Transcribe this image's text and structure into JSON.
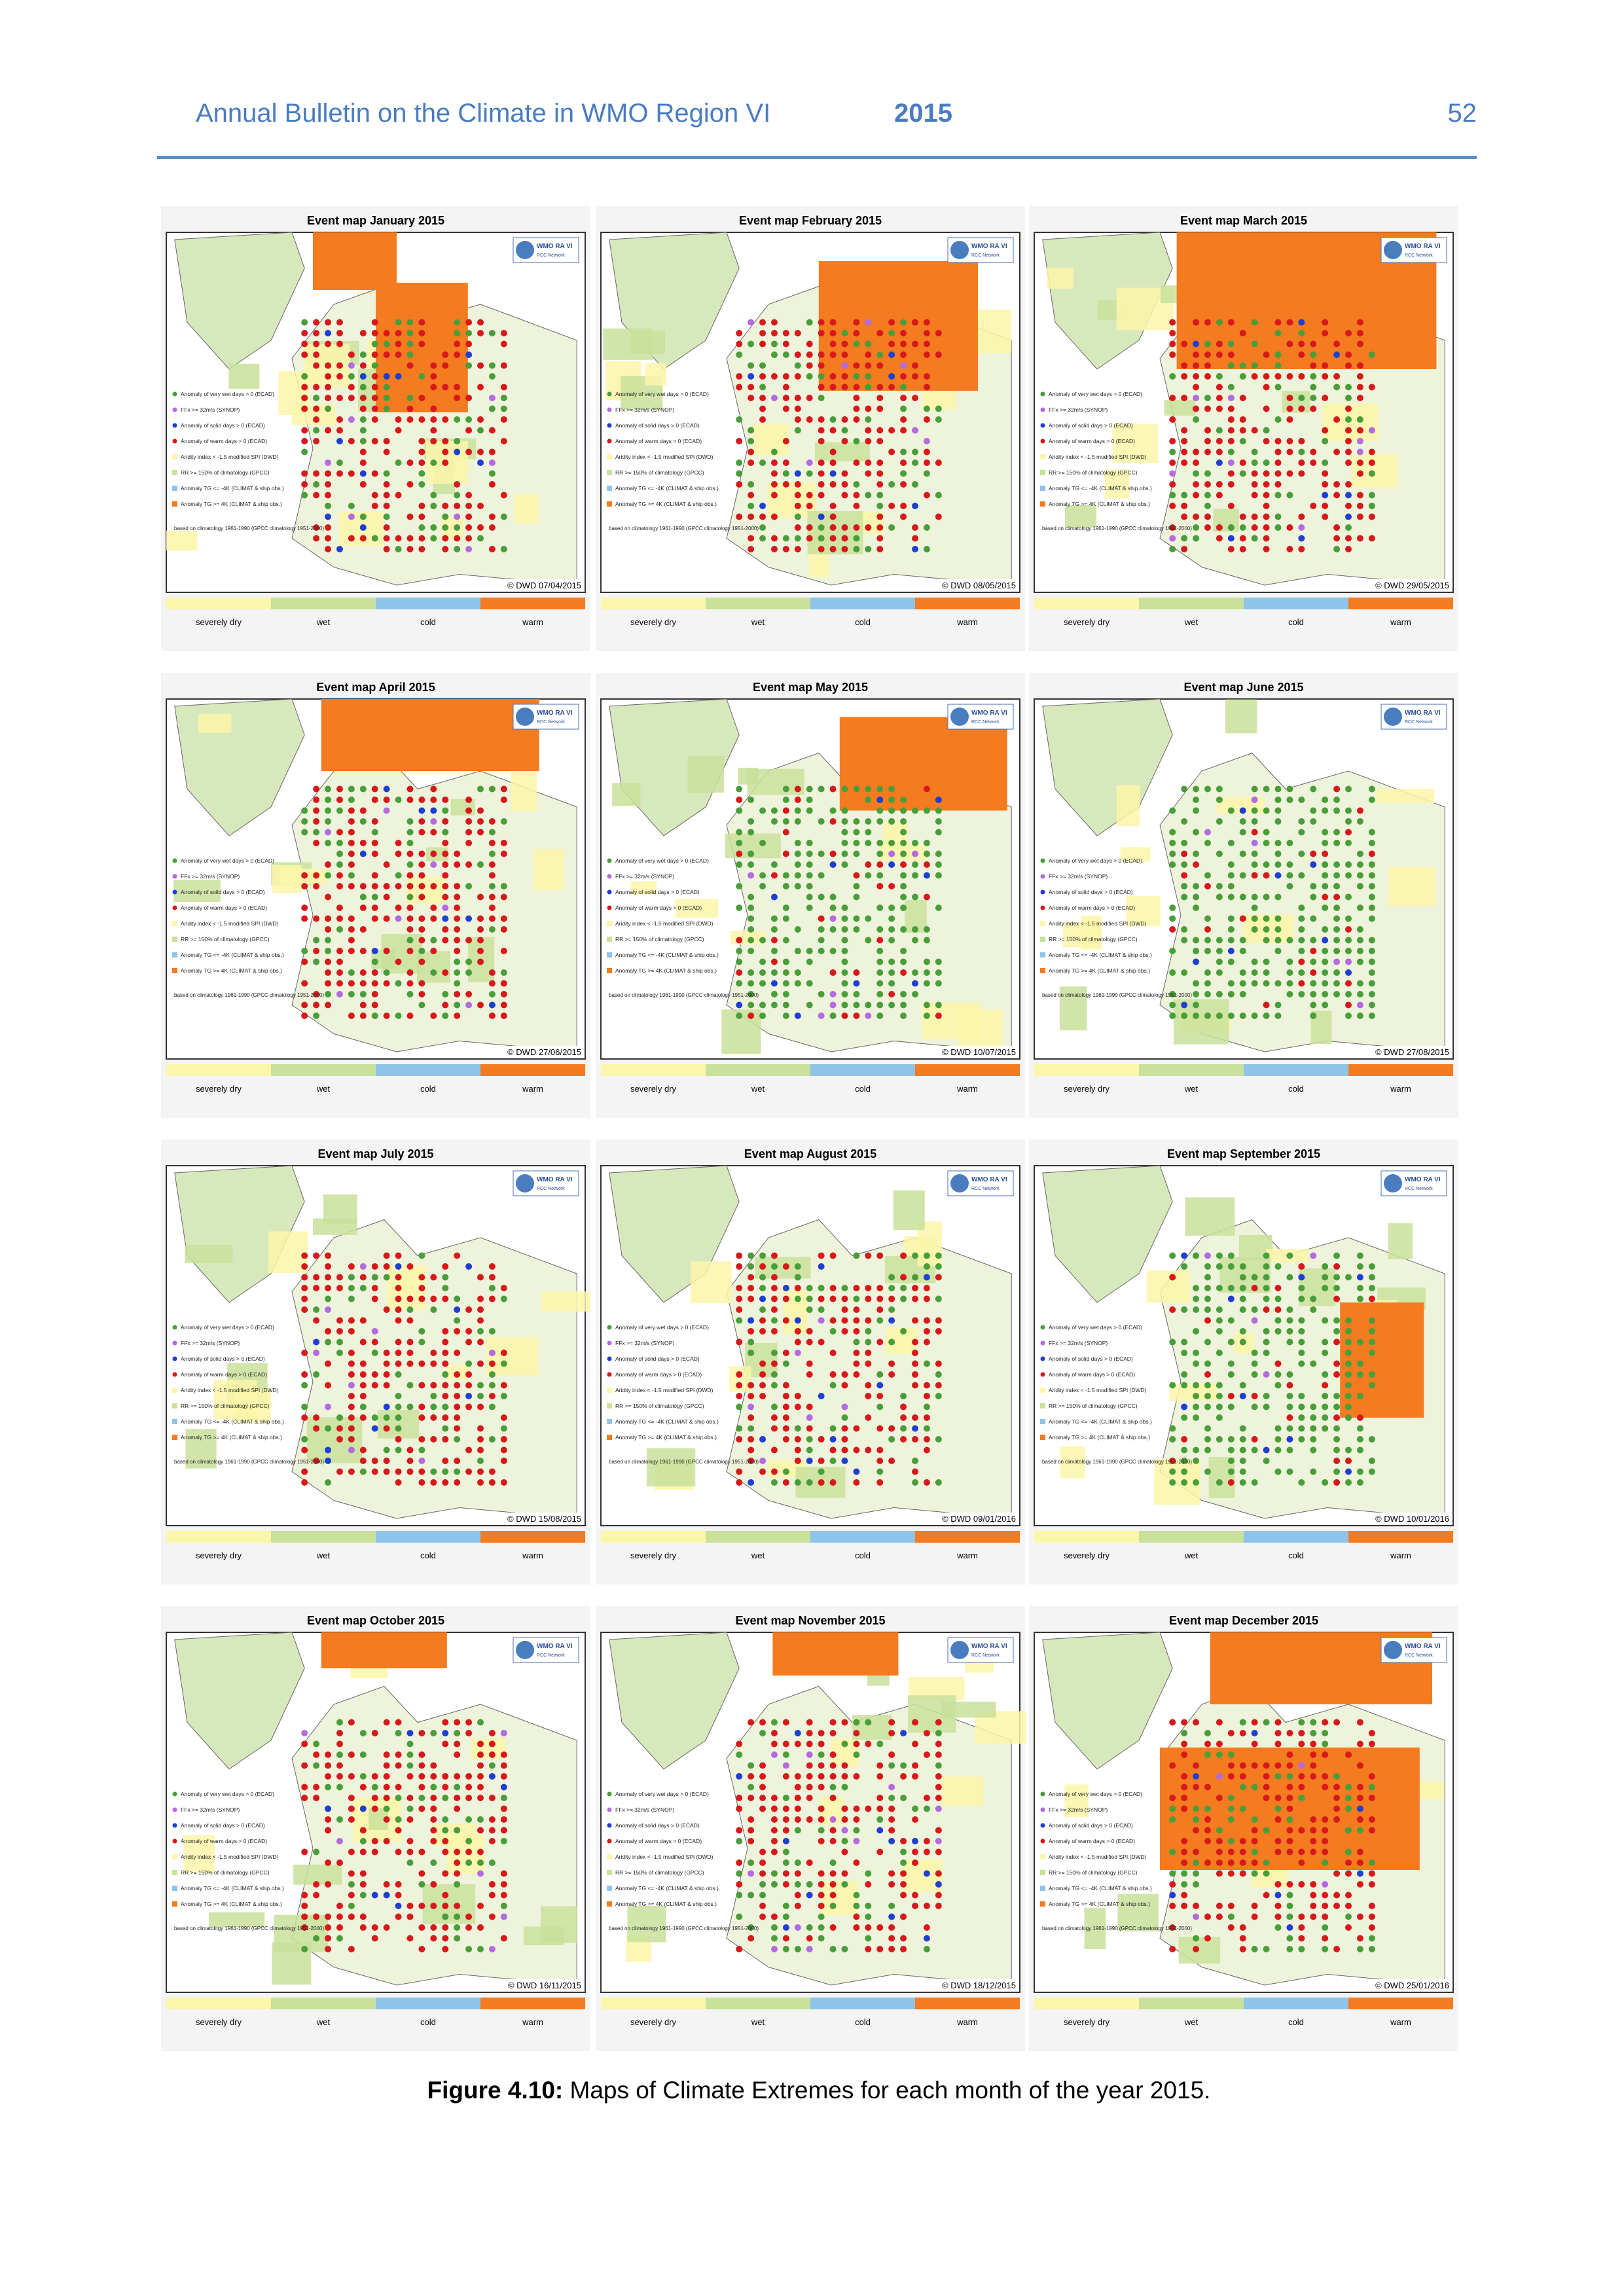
{
  "header": {
    "title": "Annual Bulletin on the Climate in WMO Region VI",
    "year": "2015",
    "page": "52"
  },
  "maps": [
    {
      "title": "Event map January 2015",
      "stamp": "© DWD 07/04/2015"
    },
    {
      "title": "Event map February 2015",
      "stamp": "© DWD 08/05/2015"
    },
    {
      "title": "Event map March 2015",
      "stamp": "© DWD 29/05/2015"
    },
    {
      "title": "Event map April 2015",
      "stamp": "© DWD 27/06/2015"
    },
    {
      "title": "Event map May 2015",
      "stamp": "© DWD 10/07/2015"
    },
    {
      "title": "Event map June 2015",
      "stamp": "© DWD 27/08/2015"
    },
    {
      "title": "Event map July 2015",
      "stamp": "© DWD 15/08/2015"
    },
    {
      "title": "Event map August 2015",
      "stamp": "© DWD 09/01/2016"
    },
    {
      "title": "Event map September 2015",
      "stamp": "© DWD 10/01/2016"
    },
    {
      "title": "Event map October 2015",
      "stamp": "© DWD 16/11/2015"
    },
    {
      "title": "Event map November 2015",
      "stamp": "© DWD 18/12/2015"
    },
    {
      "title": "Event map December 2015",
      "stamp": "© DWD 25/01/2016"
    }
  ],
  "map_legend": [
    "Anomaly of very wet days > 0 (ECAD)",
    "FFx >= 32m/s (SYNOP)",
    "Anomaly of solid days > 0 (ECAD)",
    "Anomaly of warm days > 0 (ECAD)",
    "Aridity index < -1.5 modified SPI (DWD)",
    "RR >= 150% of climatology (GPCC)",
    "Anomaly TG <= -4K (CLIMAT & ship obs.)",
    "Anomaly TG >= 4K (CLIMAT & ship obs.)"
  ],
  "climatology_note": "based on climatology 1961-1990 (GPCC climatology 1951-2000)",
  "logo": [
    "WMO RA VI",
    "RCC Network"
  ],
  "color_bar": [
    "severely dry",
    "wet",
    "cold",
    "warm"
  ],
  "caption": {
    "label": "Figure 4.10:",
    "text": "Maps of Climate Extremes for each month of the year 2015."
  }
}
